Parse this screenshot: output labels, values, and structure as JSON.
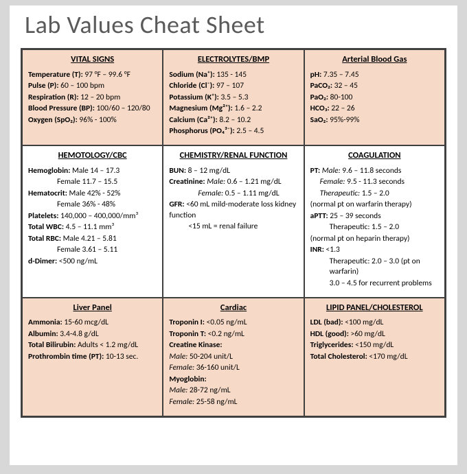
{
  "title": "Lab Values Cheat Sheet",
  "layout": {
    "cols": 3,
    "rows": 3,
    "border_color": "#404040",
    "page_bg": "#ffffff",
    "canvas_bg": "#d8d8d8",
    "peach": "#f6d9c6",
    "title_color": "#5a5a5a",
    "title_fontsize": 36,
    "body_fontsize": 11.5
  },
  "cells": {
    "vital": {
      "bg": "peach",
      "heading": "VITAL SIGNS",
      "lines": [
        {
          "label": "Temperature (T):",
          "value": "97 °F – 99.6 °F"
        },
        {
          "label": "Pulse (P):",
          "value": "60 – 100 bpm"
        },
        {
          "label": "Respiration (R):",
          "value": "12 – 20 bpm"
        },
        {
          "label": "Blood Pressure (BP):",
          "value": "100/60 – 120/80"
        },
        {
          "label": "Oxygen (SpO₂):",
          "value": "96% - 100%"
        }
      ]
    },
    "electro": {
      "bg": "peach",
      "heading": "ELECTROLYTES/BMP",
      "lines": [
        {
          "label": "Sodium (Na⁺):",
          "value": "135 - 145"
        },
        {
          "label": "Chloride (Cl⁻):",
          "value": "97 – 107"
        },
        {
          "label": "Potassium (K⁺):",
          "value": "3.5 – 5.3"
        },
        {
          "label": "Magnesium (Mg²⁺):",
          "value": "1.6 – 2.2"
        },
        {
          "label": "Calcium (Ca²⁺):",
          "value": "8.2 – 10.2"
        },
        {
          "label": "Phosphorus (PO₄³⁻):",
          "value": "2.5 – 4.5"
        }
      ]
    },
    "abg": {
      "bg": "peach",
      "heading": "Arterial Blood Gas",
      "lines": [
        {
          "label": "pH:",
          "value": "7.35 – 7.45"
        },
        {
          "label": "PaCO₂:",
          "value": "32 – 45"
        },
        {
          "label": "PaO₂:",
          "value": "80-100"
        },
        {
          "label": "HCO₃:",
          "value": "22 – 26"
        },
        {
          "label": "SaO₂:",
          "value": "95%-99%"
        }
      ]
    },
    "hemo": {
      "bg": "white",
      "heading": "HEMOTOLOGY/CBC",
      "lines": [
        {
          "label": "Hemoglobin:",
          "extra": "Male 14 – 17.3"
        },
        {
          "indent": "ind",
          "extra": "Female 11.7 – 15.5"
        },
        {
          "label": "Hematocrit:",
          "extra": "Male 42% - 52%"
        },
        {
          "indent": "ind",
          "extra": "Female 36% - 48%"
        },
        {
          "label": "Platelets:",
          "value": "140,000 – 400,000/mm³"
        },
        {
          "label": "Total WBC:",
          "value": "4.5 – 11.1 mm³"
        },
        {
          "label": "Total RBC:",
          "extra": "Male 4.21 – 5.81"
        },
        {
          "indent": "ind",
          "extra": "Female 3.61 – 5.11"
        },
        {
          "label": "d-Dimer:",
          "value": "<500 ng/mL"
        }
      ]
    },
    "chem": {
      "bg": "white",
      "heading": "CHEMISTRY/RENAL FUNCTION",
      "lines": [
        {
          "label": "BUN:",
          "value": "8 – 12 mg/dL"
        },
        {
          "label": "Creatinine:",
          "italic": "Male:",
          "value": "0.6 – 1.21 mg/dL"
        },
        {
          "indent": "ind",
          "italic": "Female:",
          "value": "0.5 – 1.11 mg/dL"
        },
        {
          "label": "GFR:",
          "value": "<60 mL mild-moderate loss kidney function"
        },
        {
          "indent": "ind2",
          "value": "<15 mL = renal failure"
        }
      ]
    },
    "coag": {
      "bg": "white",
      "heading": "COAGULATION",
      "lines": [
        {
          "label": "PT:",
          "italic": "Male:",
          "value": "9.6 – 11.8 seconds"
        },
        {
          "indent": "ind3",
          "italic": "Female:",
          "value": "9.5 - 11.3 seconds"
        },
        {
          "indent": "ind3",
          "italic": "Therapeutic:",
          "value": "1.5 – 2.0"
        },
        {
          "plain": "(normal pt on warfarin therapy)"
        },
        {
          "label": "aPTT:",
          "value": "25 – 39 seconds"
        },
        {
          "indent": "ind2",
          "plain": "Therapeutic: 1.5 – 2.0"
        },
        {
          "plain": "(normal pt on heparin therapy)"
        },
        {
          "label": "INR:",
          "value": "<1.3"
        },
        {
          "indent": "ind2",
          "plain": "Therapeutic: 2.0 – 3.0 (pt on warfarin)"
        },
        {
          "indent": "ind2",
          "plain": "3.0 – 4.5 for recurrent problems"
        }
      ]
    },
    "liver": {
      "bg": "peach",
      "heading": "Liver Panel",
      "lines": [
        {
          "label": "Ammonia:",
          "value": "15-60 mcg/dL"
        },
        {
          "label": "Albumin:",
          "value": "3.4-4.8 g/dL"
        },
        {
          "label": "Total Bilirubin:",
          "value": "Adults < 1.2 mg/dL"
        },
        {
          "label": "Prothrombin time (PT):",
          "value": "10-13 sec."
        }
      ]
    },
    "cardiac": {
      "bg": "peach",
      "heading": "Cardiac",
      "lines": [
        {
          "label": "Troponin I:",
          "value": "<0.05 ng/mL"
        },
        {
          "label": "Troponin T:",
          "value": "<0.2 ng/mL"
        },
        {
          "label": "Creatine Kinase:",
          "value": ""
        },
        {
          "italic": "Male:",
          "value": "50-204 unit/L"
        },
        {
          "italic": "Female:",
          "value": "36-160 unit/L"
        },
        {
          "label": "Myoglobin:",
          "value": ""
        },
        {
          "italic": "Male:",
          "value": "28-72 ng/mL"
        },
        {
          "italic": "Female:",
          "value": "25-58 ng/mL"
        }
      ]
    },
    "lipid": {
      "bg": "peach",
      "heading": "LIPID PANEL/CHOLESTEROL",
      "lines": [
        {
          "label": "LDL (bad):",
          "value": "<100 mg/dL"
        },
        {
          "label": "HDL (good):",
          "value": ">60 mg/dL"
        },
        {
          "label": "Triglycerides:",
          "value": "<150 mg/dL"
        },
        {
          "label": "Total Cholesterol:",
          "value": "<170 mg/dL"
        }
      ]
    }
  },
  "order": [
    "vital",
    "electro",
    "abg",
    "hemo",
    "chem",
    "coag",
    "liver",
    "cardiac",
    "lipid"
  ]
}
